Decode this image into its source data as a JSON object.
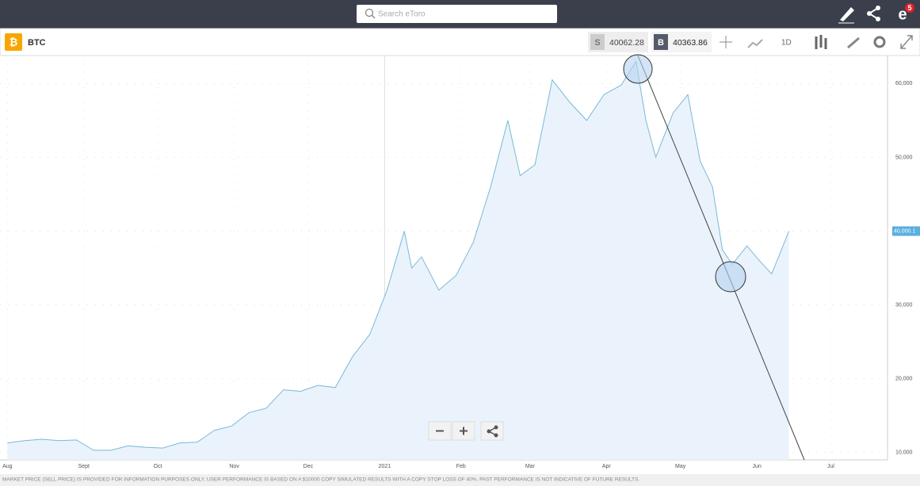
{
  "search_placeholder": "Search eToro",
  "notification_count": "5",
  "symbol": "BTC",
  "sell_label": "S",
  "sell_price": "40062.28",
  "buy_label": "B",
  "buy_price": "40363.86",
  "timeframe": "1D",
  "price_tag": "40,000.1",
  "footer": "MARKET PRICE (SELL PRICE) IS PROVIDED FOR INFORMATION PURPOSES ONLY. USER PERFORMANCE IS BASED ON A $10000 COPY SIMULATED RESULTS WITH A COPY STOP LOSS OF 40%. PAST PERFORMANCE IS NOT INDICATIVE OF FUTURE RESULTS.",
  "chart_data": {
    "type": "area",
    "color": "#7ab8d9",
    "fill": "#eaf3fb",
    "grid": true,
    "x": [
      0,
      7,
      14,
      21,
      28,
      35,
      42,
      49,
      56,
      63,
      70,
      77,
      84,
      91,
      98,
      105,
      112,
      119,
      126,
      133,
      140,
      147,
      154,
      161,
      164,
      168,
      175,
      182,
      189,
      196,
      203,
      208,
      214,
      221,
      228,
      235,
      242,
      249,
      255,
      259,
      263,
      270,
      276,
      281,
      286,
      290,
      294,
      300,
      305,
      310,
      314,
      317
    ],
    "values": [
      11300,
      11600,
      11800,
      11600,
      11700,
      10300,
      10300,
      10900,
      10700,
      10600,
      11300,
      11400,
      13000,
      13600,
      15400,
      16000,
      18500,
      18300,
      19100,
      18800,
      23000,
      26000,
      32000,
      40000,
      35000,
      36500,
      32000,
      34000,
      38500,
      46000,
      55000,
      47500,
      49000,
      60500,
      57500,
      55000,
      58500,
      59800,
      63000,
      55000,
      50000,
      56000,
      58500,
      49500,
      46000,
      37500,
      35500,
      38000,
      36000,
      34200,
      37500,
      40000
    ],
    "xlim": [
      -3,
      357
    ],
    "xticks": [
      {
        "value": 0,
        "label": "Aug"
      },
      {
        "value": 31,
        "label": "Sept"
      },
      {
        "value": 61,
        "label": "Oct"
      },
      {
        "value": 92,
        "label": "Nov"
      },
      {
        "value": 122,
        "label": "Dec"
      },
      {
        "value": 153,
        "label": "2021"
      },
      {
        "value": 184,
        "label": "Feb"
      },
      {
        "value": 212,
        "label": "Mar"
      },
      {
        "value": 243,
        "label": "Apr"
      },
      {
        "value": 273,
        "label": "May"
      },
      {
        "value": 304,
        "label": "Jun"
      },
      {
        "value": 334,
        "label": "Jul"
      }
    ],
    "ylim": [
      9000,
      63800
    ],
    "yticks": [
      {
        "value": 10000,
        "label": "10,000"
      },
      {
        "value": 20000,
        "label": "20,000"
      },
      {
        "value": 30000,
        "label": "30,000"
      },
      {
        "value": 40000,
        "label": "40,000"
      },
      {
        "value": 50000,
        "label": "50,000"
      },
      {
        "value": 60000,
        "label": "60,000"
      }
    ]
  }
}
